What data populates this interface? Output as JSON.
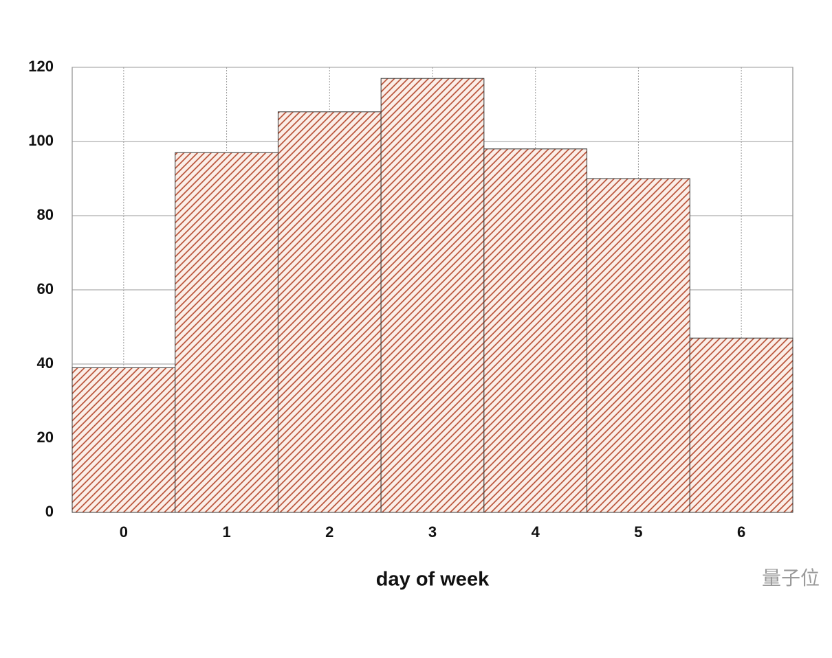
{
  "chart_data": {
    "type": "bar",
    "xlabel": "day of week",
    "watermark": "量子位",
    "x": [
      0,
      1,
      2,
      3,
      4,
      5,
      6
    ],
    "values": [
      39,
      97,
      108,
      117,
      98,
      90,
      47
    ],
    "color": "#b4472b",
    "xlim": [
      -0.5,
      6.5
    ],
    "xticks": [
      0,
      1,
      2,
      3,
      4,
      5,
      6
    ],
    "ylim": [
      0,
      120
    ],
    "yticks": [
      0,
      20,
      40,
      60,
      80,
      100,
      120
    ],
    "grid": true
  }
}
